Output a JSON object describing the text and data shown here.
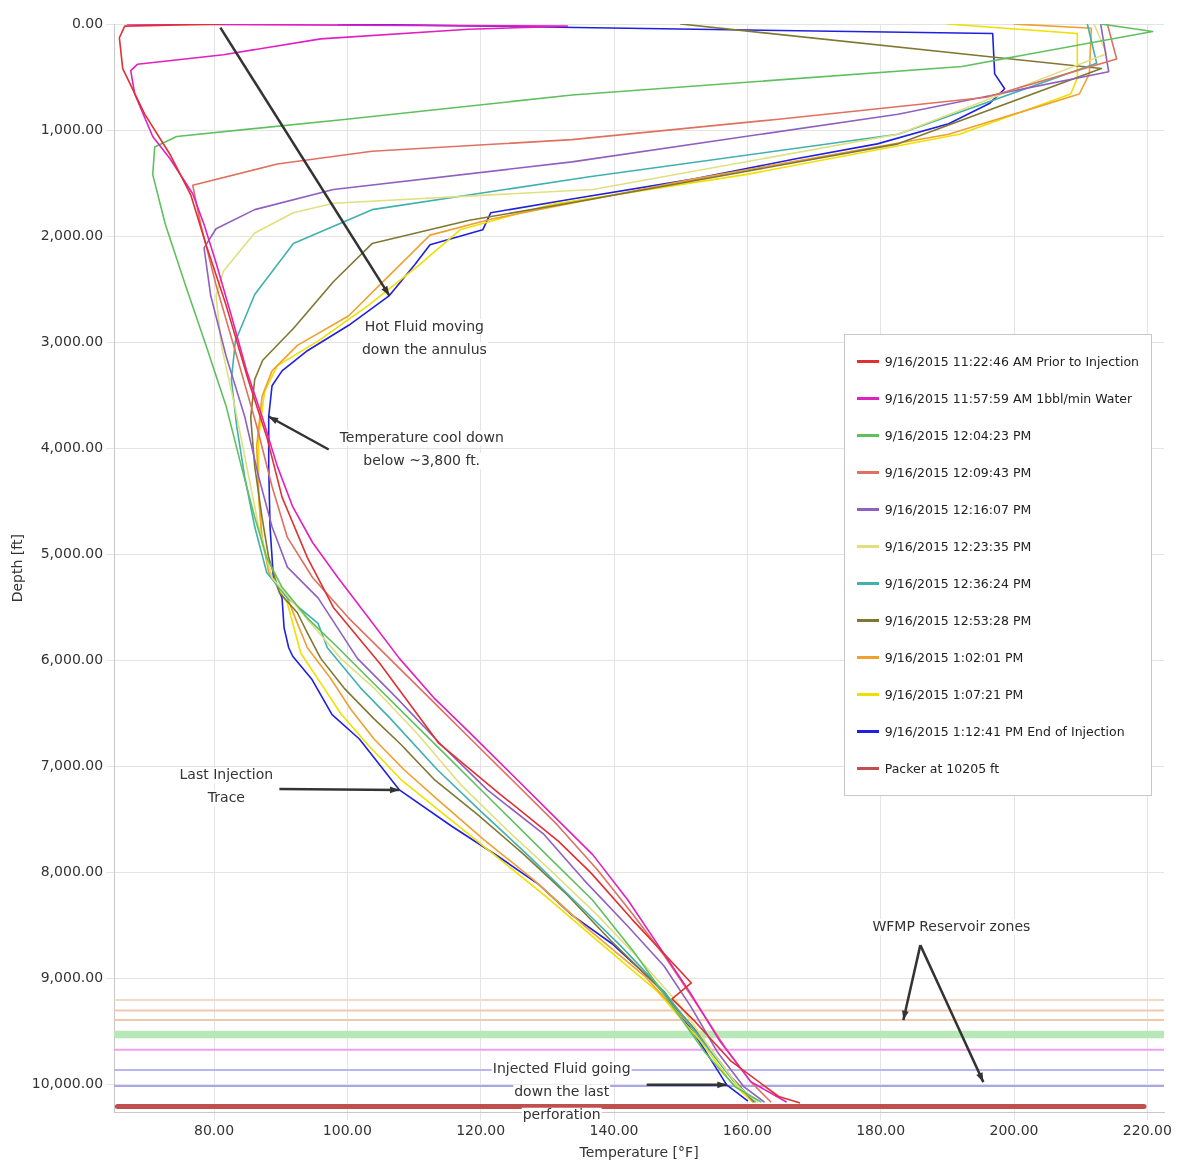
{
  "chart_data": {
    "type": "line",
    "xlabel": "Temperature [°F]",
    "ylabel": "Depth [ft]",
    "xlim": [
      65,
      222.5
    ],
    "xticks": [
      {
        "value": 80,
        "label": "80.00"
      },
      {
        "value": 100,
        "label": "100.00"
      },
      {
        "value": 120,
        "label": "120.00"
      },
      {
        "value": 140,
        "label": "140.00"
      },
      {
        "value": 160,
        "label": "160.00"
      },
      {
        "value": 180,
        "label": "180.00"
      },
      {
        "value": 200,
        "label": "200.00"
      },
      {
        "value": 220,
        "label": "220.00"
      }
    ],
    "ylim": [
      10260,
      0
    ],
    "yticks": [
      {
        "value": 0,
        "label": "0.00"
      },
      {
        "value": 1000,
        "label": "1,000.00"
      },
      {
        "value": 2000,
        "label": "2,000.00"
      },
      {
        "value": 3000,
        "label": "3,000.00"
      },
      {
        "value": 4000,
        "label": "4,000.00"
      },
      {
        "value": 5000,
        "label": "5,000.00"
      },
      {
        "value": 6000,
        "label": "6,000.00"
      },
      {
        "value": 7000,
        "label": "7,000.00"
      },
      {
        "value": 8000,
        "label": "8,000.00"
      },
      {
        "value": 9000,
        "label": "9,000.00"
      },
      {
        "value": 10000,
        "label": "10,000.00"
      }
    ],
    "grid": true,
    "legend": "right",
    "series": [
      {
        "name": "9/16/2015 11:22:46 AM Prior to Injection",
        "color": "#e03030",
        "x": [
          81.5,
          66.6,
          65.8,
          66.3,
          69.6,
          73.4,
          76.5,
          78.8,
          81.8,
          85.2,
          87.9,
          90.2,
          94.0,
          97.9,
          104.9,
          113.7,
          122.7,
          131.6,
          136.5,
          142.7,
          151.6,
          148.7,
          152.1,
          157.6,
          164.7,
          167.8
        ],
        "values": [
          0,
          20,
          130,
          420,
          850,
          1230,
          1610,
          2080,
          2650,
          3370,
          3890,
          4460,
          5030,
          5500,
          6030,
          6780,
          7250,
          7700,
          8000,
          8440,
          9040,
          9190,
          9400,
          9780,
          10110,
          10170
        ]
      },
      {
        "name": "9/16/2015 11:57:59 AM 1bbl/min Water",
        "color": "#e020c0",
        "x": [
          67.0,
          133.0,
          118.2,
          96.0,
          81.4,
          68.5,
          67.5,
          68.1,
          70.8,
          73.4,
          76.8,
          78.5,
          80.3,
          82.6,
          84.9,
          87.2,
          89.5,
          91.8,
          94.8,
          98.6,
          103.2,
          107.8,
          113.1,
          118.5,
          124.6,
          130.7,
          136.8,
          142.1,
          146.7,
          151.3,
          155.9,
          160.5,
          165.8
        ],
        "values": [
          0,
          20,
          50,
          140,
          290,
          380,
          440,
          660,
          1060,
          1270,
          1600,
          1890,
          2250,
          2750,
          3270,
          3700,
          4170,
          4550,
          4890,
          5220,
          5600,
          5980,
          6360,
          6690,
          7070,
          7450,
          7830,
          8260,
          8690,
          9120,
          9590,
          9970,
          10160
        ]
      },
      {
        "name": "9/16/2015 12:04:23 PM",
        "color": "#60c060",
        "x": [
          213,
          220.8,
          192.2,
          133.7,
          99.5,
          74.4,
          71.1,
          70.8,
          72.7,
          75.7,
          78.8,
          81.8,
          84.1,
          86.1,
          87.9,
          90.2,
          94.0,
          98.6,
          103.2,
          109.3,
          115.4,
          121.5,
          129.2,
          136.8,
          142.9,
          148.2,
          153.6,
          158.2,
          162.0
        ],
        "values": [
          0,
          70,
          400,
          670,
          900,
          1060,
          1160,
          1420,
          1890,
          2460,
          3030,
          3600,
          4170,
          4650,
          5030,
          5310,
          5600,
          5880,
          6170,
          6550,
          6930,
          7310,
          7790,
          8260,
          8740,
          9210,
          9690,
          10020,
          10160
        ]
      },
      {
        "name": "9/16/2015 12:09:43 PM",
        "color": "#e07060",
        "x": [
          214,
          215.4,
          195.9,
          164.3,
          133.7,
          103.7,
          89.5,
          76.8,
          78.0,
          80.3,
          83.4,
          86.4,
          88.7,
          91.0,
          94.8,
          100.2,
          106.3,
          112.4,
          118.5,
          124.6,
          131.5,
          137.6,
          142.9,
          147.5,
          152.1,
          156.6,
          160.5,
          163.5
        ],
        "values": [
          0,
          330,
          690,
          900,
          1090,
          1200,
          1320,
          1520,
          1890,
          2460,
          3130,
          3790,
          4360,
          4840,
          5220,
          5600,
          5980,
          6360,
          6740,
          7120,
          7550,
          7980,
          8400,
          8780,
          9210,
          9640,
          9970,
          10160
        ]
      },
      {
        "name": "9/16/2015 12:16:07 PM",
        "color": "#9060c0",
        "x": [
          213,
          214.2,
          182.6,
          133.7,
          97.9,
          86.1,
          80.3,
          78.5,
          79.5,
          81.8,
          84.6,
          86.7,
          88.7,
          91.0,
          95.6,
          101.5,
          107.5,
          114.0,
          121.0,
          129.5,
          135.5,
          142.0,
          147.5,
          151.5,
          155.5,
          159.5,
          162.5
        ],
        "values": [
          0,
          450,
          850,
          1300,
          1560,
          1750,
          1930,
          2110,
          2560,
          3130,
          3700,
          4270,
          4740,
          5120,
          5410,
          5980,
          6360,
          6790,
          7220,
          7640,
          8070,
          8500,
          8880,
          9260,
          9690,
          10020,
          10160
        ]
      },
      {
        "name": "9/16/2015 12:23:35 PM",
        "color": "#e0e080",
        "x": [
          212,
          213.9,
          182.6,
          136.8,
          97.9,
          91.9,
          86.1,
          81.4,
          80.3,
          81.1,
          83.1,
          84.9,
          86.7,
          88.7,
          92.5,
          99.0,
          104.0,
          110.5,
          117.0,
          124.0,
          130.5,
          137.5,
          144.0,
          150.0,
          154.8,
          158.7,
          161.5
        ],
        "values": [
          0,
          280,
          1040,
          1560,
          1690,
          1780,
          1970,
          2330,
          2560,
          3030,
          3600,
          4170,
          4740,
          5220,
          5500,
          5980,
          6260,
          6690,
          7170,
          7600,
          7980,
          8400,
          8830,
          9260,
          9690,
          10020,
          10160
        ]
      },
      {
        "name": "9/16/2015 12:36:24 PM",
        "color": "#40b0b0",
        "x": [
          211,
          212.4,
          182.6,
          136.3,
          103.7,
          91.9,
          86.1,
          83.2,
          82.6,
          83.4,
          84.6,
          86.1,
          87.9,
          91.0,
          95.6,
          97.0,
          102.0,
          106.5,
          113.5,
          120.5,
          127.0,
          134.0,
          141.0,
          147.5,
          153.3,
          158.0,
          161.2
        ],
        "values": [
          0,
          370,
          1040,
          1440,
          1750,
          2070,
          2550,
          2990,
          3350,
          3790,
          4270,
          4740,
          5170,
          5410,
          5650,
          5880,
          6260,
          6550,
          7030,
          7450,
          7830,
          8260,
          8690,
          9120,
          9590,
          9970,
          10160
        ]
      },
      {
        "name": "9/16/2015 12:53:28 PM",
        "color": "#807830",
        "x": [
          150,
          213.1,
          182.6,
          136.8,
          118.3,
          103.7,
          97.9,
          91.9,
          87.3,
          86.1,
          85.5,
          86.1,
          87.2,
          88.2,
          89.8,
          92.5,
          94.0,
          96.0,
          99.5,
          104.0,
          108.0,
          113.0,
          119.5,
          126.5,
          133.0,
          139.5,
          146.5,
          153.0,
          157.5,
          161.0
        ],
        "values": [
          0,
          420,
          1130,
          1650,
          1850,
          2070,
          2430,
          2870,
          3170,
          3350,
          3710,
          4170,
          4650,
          5030,
          5360,
          5550,
          5740,
          5980,
          6260,
          6550,
          6790,
          7120,
          7450,
          7830,
          8210,
          8640,
          9070,
          9540,
          9920,
          10160
        ]
      },
      {
        "name": "9/16/2015 1:02:01 PM",
        "color": "#f0a030",
        "x": [
          200,
          211.6,
          211.3,
          209.8,
          190.2,
          152.1,
          121.5,
          112.4,
          106.3,
          100.2,
          92.5,
          88.7,
          87.2,
          86.4,
          86.7,
          87.2,
          88.2,
          91.0,
          92.5,
          94.0,
          97.5,
          100.5,
          104.0,
          108.5,
          113.5,
          120.5,
          128.0,
          135.5,
          144.5,
          152.3,
          157.5,
          160.8
        ],
        "values": [
          0,
          40,
          470,
          660,
          1040,
          1460,
          1840,
          1990,
          2370,
          2750,
          3030,
          3270,
          3510,
          3980,
          4460,
          4840,
          5170,
          5410,
          5650,
          5880,
          6170,
          6460,
          6740,
          7030,
          7310,
          7690,
          8070,
          8500,
          8970,
          9500,
          9920,
          10160
        ]
      },
      {
        "name": "9/16/2015 1:07:21 PM",
        "color": "#f0e000",
        "x": [
          190,
          209.5,
          209.5,
          208.5,
          191.8,
          159.7,
          130.7,
          116.9,
          110.8,
          103.2,
          95.6,
          89.5,
          87.6,
          86.7,
          86.7,
          87.2,
          88.7,
          91.0,
          93.0,
          96.5,
          99.0,
          103.0,
          108.0,
          114.5,
          122.0,
          129.5,
          137.5,
          146.5,
          153.0,
          157.5,
          160.8
        ],
        "values": [
          0,
          90,
          510,
          660,
          1040,
          1420,
          1700,
          1940,
          2270,
          2650,
          2990,
          3220,
          3460,
          3890,
          4460,
          4890,
          5220,
          5460,
          5930,
          6260,
          6500,
          6790,
          7120,
          7450,
          7830,
          8210,
          8640,
          9120,
          9590,
          9970,
          10160
        ]
      },
      {
        "name": "9/16/2015 1:12:41 PM End of Injection",
        "color": "#2020e0",
        "x": [
          98.6,
          196.8,
          197.1,
          198.6,
          196.3,
          190.2,
          179.5,
          167.3,
          152.1,
          133.7,
          121.5,
          120.3,
          112.4,
          110.1,
          106.3,
          100.2,
          94.0,
          90.2,
          88.7,
          88.2,
          88.2,
          88.4,
          88.9,
          90.2,
          90.5,
          91.2,
          91.8,
          94.7,
          97.7,
          101.8,
          107.8,
          115.6,
          122.7,
          128.7,
          133.7,
          139.7,
          147.5,
          152.8,
          156.9,
          160.0
        ],
        "values": [
          0,
          90,
          470,
          610,
          750,
          940,
          1130,
          1270,
          1460,
          1650,
          1780,
          1940,
          2080,
          2270,
          2560,
          2840,
          3080,
          3270,
          3410,
          3700,
          4170,
          4740,
          5220,
          5410,
          5690,
          5880,
          5960,
          6180,
          6510,
          6740,
          7220,
          7560,
          7850,
          8110,
          8400,
          8670,
          9120,
          9590,
          10000,
          10150
        ]
      },
      {
        "name": "Packer at 10205 ft",
        "color": "#c0504d",
        "x": [
          65.5,
          219.5
        ],
        "values": [
          10205,
          10205
        ]
      }
    ],
    "ref_lines": [
      {
        "axis": "y",
        "value": 9200,
        "color": "#f5d8c8"
      },
      {
        "axis": "y",
        "value": 9300,
        "color": "#f0c8b0"
      },
      {
        "axis": "y",
        "value": 9390,
        "color": "#f0c8b0"
      },
      {
        "axis": "y",
        "value": 9670,
        "color": "#f0a0f0"
      },
      {
        "axis": "y",
        "value": 9860,
        "color": "#b8b8f0"
      },
      {
        "axis": "y",
        "value": 10010,
        "color": "#a8a8e8"
      }
    ],
    "bands": [
      {
        "axis": "y",
        "from": 9490,
        "to": 9560,
        "color": "#b8e8b8"
      }
    ],
    "annotations": [
      {
        "text": "Hot Fluid moving\ndown the annulus",
        "x": 106.3,
        "y": 2560
      },
      {
        "text": "Temperature cool down\nbelow ~3,800 ft.",
        "x": 88.2,
        "y": 3700
      },
      {
        "text": "Last Injection\nTrace",
        "x": 107.8,
        "y": 7220
      },
      {
        "text": "Injected Fluid going\ndown the last\nperforation",
        "x": 156.9,
        "y": 10000
      },
      {
        "text": "WFMP Reservoir zones",
        "x": 183.4,
        "y": 9390
      }
    ]
  }
}
